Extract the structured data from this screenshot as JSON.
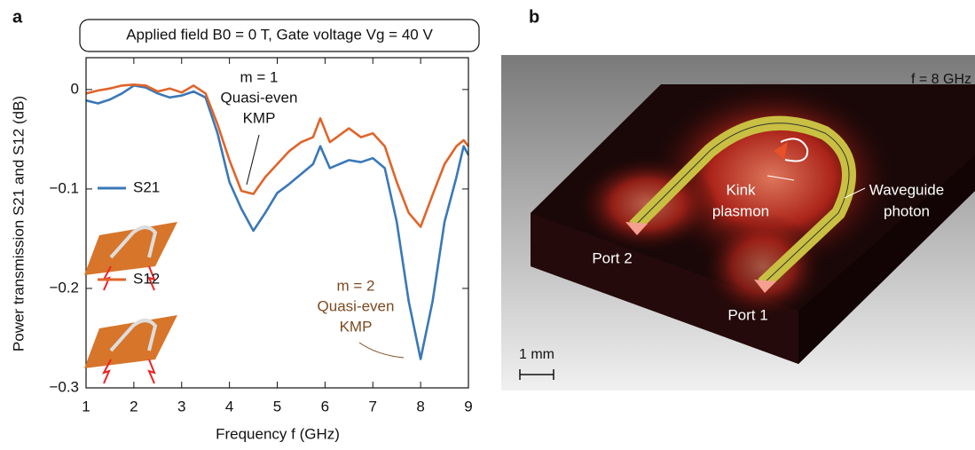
{
  "panel_labels": [
    "a",
    "b"
  ],
  "chart_data": {
    "type": "line",
    "title": "Applied field B0 = 0 T, Gate voltage Vg = 40 V",
    "x_label": "Frequency f (GHz)",
    "y_label": "Power transmission S21 and S12 (dB)",
    "x": [
      1,
      1.25,
      1.5,
      1.75,
      2,
      2.25,
      2.5,
      2.75,
      3,
      3.25,
      3.5,
      3.75,
      4,
      4.25,
      4.5,
      4.75,
      5,
      5.25,
      5.5,
      5.75,
      5.9,
      6.1,
      6.5,
      6.75,
      7,
      7.25,
      7.5,
      7.75,
      8,
      8.25,
      8.5,
      8.75,
      8.9,
      9
    ],
    "series": [
      {
        "name": "S21",
        "color": "#3a78b8",
        "values": [
          -0.011,
          -0.014,
          -0.01,
          -0.004,
          0.004,
          0.002,
          -0.004,
          -0.008,
          -0.006,
          -0.002,
          -0.008,
          -0.044,
          -0.093,
          -0.12,
          -0.142,
          -0.124,
          -0.104,
          -0.095,
          -0.085,
          -0.075,
          -0.057,
          -0.079,
          -0.071,
          -0.073,
          -0.069,
          -0.079,
          -0.133,
          -0.213,
          -0.271,
          -0.213,
          -0.133,
          -0.088,
          -0.057,
          -0.066
        ]
      },
      {
        "name": "S12",
        "color": "#e0642a",
        "values": [
          -0.004,
          -0.001,
          0.001,
          0.004,
          0.005,
          0.004,
          -0.002,
          0.001,
          -0.003,
          0.004,
          -0.004,
          -0.035,
          -0.071,
          -0.102,
          -0.105,
          -0.088,
          -0.075,
          -0.062,
          -0.053,
          -0.048,
          -0.029,
          -0.053,
          -0.039,
          -0.048,
          -0.044,
          -0.057,
          -0.093,
          -0.124,
          -0.138,
          -0.106,
          -0.075,
          -0.057,
          -0.051,
          -0.057
        ]
      }
    ],
    "xlim": [
      1,
      9
    ],
    "xticks": [
      1,
      2,
      3,
      4,
      5,
      6,
      7,
      8,
      9
    ],
    "ylim": [
      -0.3,
      0.032
    ],
    "yticks": [
      0,
      {
        "value": -0.1,
        "label": "−0.1"
      },
      {
        "value": -0.2,
        "label": "−0.2"
      },
      {
        "value": -0.3,
        "label": "−0.3"
      }
    ],
    "annotations": [
      [
        "m = 1",
        "Quasi-even",
        "KMP"
      ],
      [
        "m = 2",
        "Quasi-even",
        "KMP"
      ]
    ]
  },
  "simulation": {
    "frequency": "f = 8 GHz",
    "kink": [
      "Kink",
      "plasmon"
    ],
    "waveguide": [
      "Waveguide",
      "photon"
    ],
    "port2": "Port 2",
    "port1": "Port 1",
    "scale": "1 mm"
  }
}
